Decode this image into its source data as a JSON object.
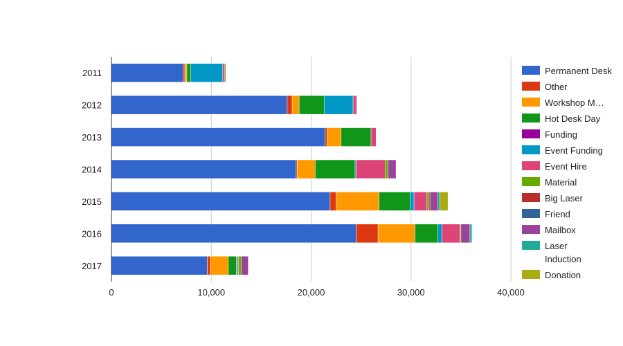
{
  "chart_data": {
    "type": "bar",
    "orientation": "horizontal",
    "stacked": true,
    "title": "",
    "xlabel": "",
    "ylabel": "",
    "categories": [
      "2011",
      "2012",
      "2013",
      "2014",
      "2015",
      "2016",
      "2017"
    ],
    "xlim": [
      0,
      40000
    ],
    "x_ticks": [
      0,
      10000,
      20000,
      30000,
      40000
    ],
    "x_tick_labels": [
      "0",
      "10,000",
      "20,000",
      "30,000",
      "40,000"
    ],
    "grid": true,
    "legend_position": "right",
    "series": [
      {
        "name": "Permanent Desk",
        "color": "#3366cc",
        "values": [
          7200,
          17600,
          21400,
          18500,
          21900,
          24500,
          9600
        ]
      },
      {
        "name": "Other",
        "color": "#dc3912",
        "values": [
          150,
          500,
          200,
          100,
          600,
          2200,
          300
        ]
      },
      {
        "name": "Workshop M…",
        "color": "#ff9900",
        "values": [
          200,
          700,
          1400,
          1800,
          4300,
          3700,
          1800
        ]
      },
      {
        "name": "Hot Desk Day",
        "color": "#109618",
        "values": [
          400,
          2500,
          3000,
          4000,
          3100,
          2300,
          800
        ]
      },
      {
        "name": "Funding",
        "color": "#990099",
        "values": [
          0,
          0,
          0,
          0,
          0,
          0,
          0
        ]
      },
      {
        "name": "Event Funding",
        "color": "#0099c6",
        "values": [
          3200,
          2900,
          0,
          100,
          400,
          400,
          100
        ]
      },
      {
        "name": "Event Hire",
        "color": "#dd4477",
        "values": [
          200,
          300,
          500,
          2900,
          1300,
          1800,
          100
        ]
      },
      {
        "name": "Material",
        "color": "#66aa00",
        "values": [
          100,
          0,
          0,
          300,
          200,
          100,
          300
        ]
      },
      {
        "name": "Big Laser",
        "color": "#b82e2e",
        "values": [
          0,
          0,
          0,
          0,
          100,
          0,
          0
        ]
      },
      {
        "name": "Friend",
        "color": "#316395",
        "values": [
          0,
          0,
          0,
          0,
          0,
          0,
          0
        ]
      },
      {
        "name": "Mailbox",
        "color": "#994499",
        "values": [
          0,
          100,
          0,
          800,
          800,
          900,
          700
        ]
      },
      {
        "name": "Laser Induction",
        "color": "#22aa99",
        "values": [
          0,
          0,
          0,
          0,
          200,
          200,
          0
        ]
      },
      {
        "name": "Donation",
        "color": "#aaaa11",
        "values": [
          0,
          0,
          0,
          0,
          800,
          0,
          0
        ]
      }
    ]
  }
}
